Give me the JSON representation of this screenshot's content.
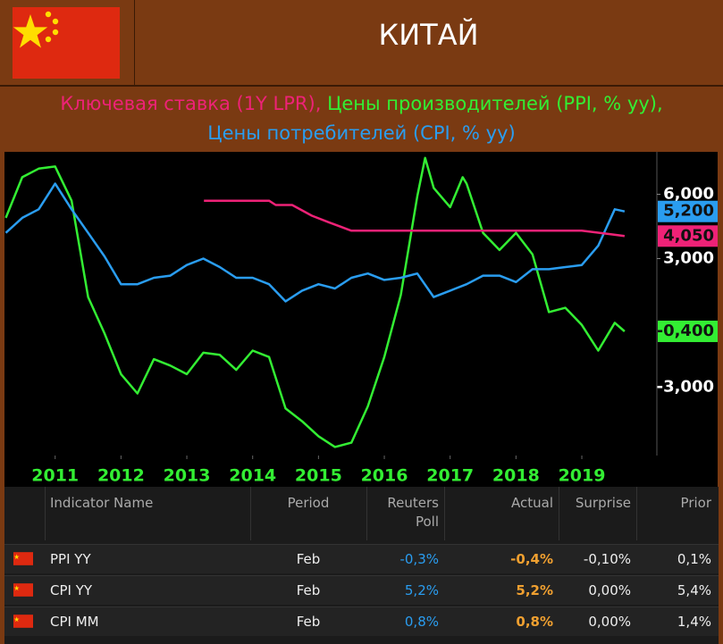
{
  "header": {
    "title": "КИТАЙ"
  },
  "chart_data": {
    "type": "line",
    "series": [
      {
        "name": "Ключевая ставка (1Y LPR),",
        "color": "#ee2277",
        "end_label": "4,050",
        "x": [
          2013.26,
          2014.25,
          2014.35,
          2014.6,
          2014.9,
          2015.15,
          2015.5,
          2019.0,
          2019.4,
          2019.65
        ],
        "values": [
          5.7,
          5.7,
          5.5,
          5.5,
          5.0,
          4.7,
          4.3,
          4.3,
          4.15,
          4.05
        ]
      },
      {
        "name": "Цены производителей (PPI, % yy),",
        "color": "#33ee33",
        "end_label": "-0,400",
        "x": [
          2010.25,
          2010.5,
          2010.75,
          2011.0,
          2011.25,
          2011.5,
          2011.75,
          2012.0,
          2012.25,
          2012.5,
          2012.75,
          2013.0,
          2013.25,
          2013.5,
          2013.75,
          2014.0,
          2014.25,
          2014.5,
          2014.75,
          2015.0,
          2015.25,
          2015.5,
          2015.75,
          2016.0,
          2016.25,
          2016.5,
          2016.62,
          2016.75,
          2017.0,
          2017.19,
          2017.25,
          2017.5,
          2017.75,
          2018.0,
          2018.25,
          2018.5,
          2018.75,
          2019.0,
          2019.25,
          2019.5,
          2019.65
        ],
        "values": [
          4.9,
          6.8,
          7.2,
          7.3,
          5.7,
          1.2,
          -0.5,
          -2.4,
          -3.3,
          -1.7,
          -2.0,
          -2.4,
          -1.4,
          -1.5,
          -2.2,
          -1.3,
          -1.6,
          -4.0,
          -4.6,
          -5.3,
          -5.8,
          -5.6,
          -3.9,
          -1.6,
          1.3,
          5.9,
          7.7,
          6.3,
          5.4,
          6.8,
          6.5,
          4.2,
          3.4,
          4.2,
          3.2,
          0.5,
          0.7,
          -0.1,
          -1.3,
          0.0,
          -0.4
        ]
      },
      {
        "name": "Цены потребителей (CPI, % yy)",
        "color": "#2a9df0",
        "end_label": "5,200",
        "x": [
          2010.25,
          2010.5,
          2010.75,
          2011.0,
          2011.25,
          2011.5,
          2011.75,
          2012.0,
          2012.25,
          2012.5,
          2012.75,
          2013.0,
          2013.25,
          2013.5,
          2013.75,
          2014.0,
          2014.25,
          2014.5,
          2014.75,
          2015.0,
          2015.25,
          2015.5,
          2015.75,
          2016.0,
          2016.25,
          2016.5,
          2016.75,
          2017.0,
          2017.25,
          2017.5,
          2017.75,
          2018.0,
          2018.25,
          2018.5,
          2018.75,
          2019.0,
          2019.25,
          2019.5,
          2019.65
        ],
        "values": [
          4.2,
          4.9,
          5.3,
          6.5,
          5.3,
          4.2,
          3.1,
          1.8,
          1.8,
          2.1,
          2.2,
          2.7,
          3.0,
          2.6,
          2.1,
          2.1,
          1.8,
          1.0,
          1.5,
          1.8,
          1.6,
          2.1,
          2.3,
          2.0,
          2.1,
          2.3,
          1.2,
          1.5,
          1.8,
          2.2,
          2.2,
          1.9,
          2.5,
          2.5,
          2.6,
          2.7,
          3.6,
          5.3,
          5.2
        ]
      }
    ],
    "xlim": [
      2010.23,
      2020.14
    ],
    "xticks": [
      2011,
      2012,
      2013,
      2014,
      2015,
      2016,
      2017,
      2018,
      2019
    ],
    "ylim": [
      -6.2,
      7.9
    ],
    "yticks": [
      {
        "value": 6,
        "label": "6,000"
      },
      {
        "value": 3,
        "label": "3,000"
      },
      {
        "value": -3,
        "label": "-3,000"
      }
    ]
  },
  "table": {
    "columns": [
      "Indicator Name",
      "Period",
      "Reuters Poll",
      "Actual",
      "Surprise",
      "Prior"
    ],
    "rows": [
      [
        "PPI YY",
        "Feb",
        "-0,3%",
        "-0,4%",
        "-0,10%",
        "0,1%"
      ],
      [
        "CPI YY",
        "Feb",
        "5,2%",
        "5,2%",
        "0,00%",
        "5,4%"
      ],
      [
        "CPI MM",
        "Feb",
        "0,8%",
        "0,8%",
        "0,00%",
        "1,4%"
      ]
    ]
  }
}
